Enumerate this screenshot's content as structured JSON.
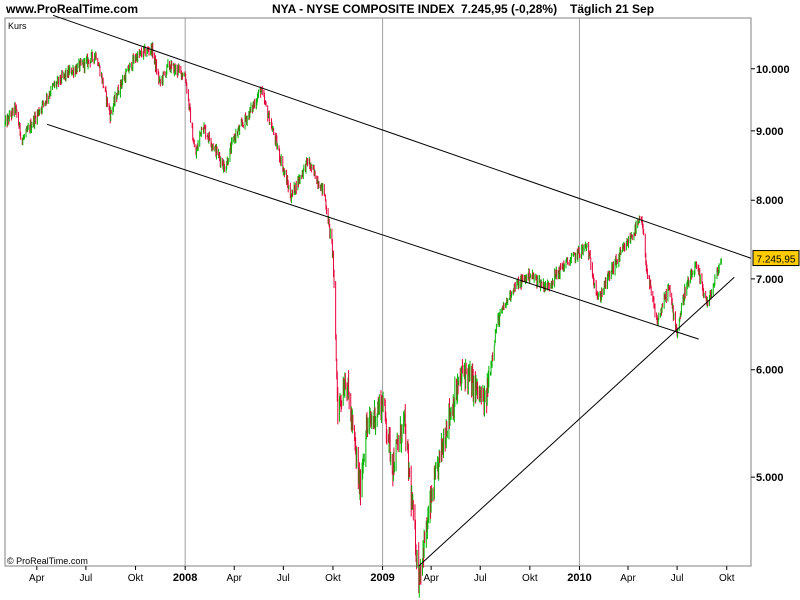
{
  "header": {
    "site": "www.ProRealTime.com",
    "title": "NYA - NYSE COMPOSITE INDEX",
    "last_value": "7.245,95 (-0,28%)",
    "period": "Täglich  21 Sep"
  },
  "panel_label": "Kurs",
  "copyright": "© ProRealTime.com",
  "price_tag": "7.245,95",
  "colors": {
    "up": "#00b400",
    "down": "#e8003a",
    "grid": "#a0a0a0",
    "tag_bg": "#ffcc00"
  },
  "chart_data": {
    "type": "candlestick",
    "y_scale": "log",
    "ylim": [
      4300,
      10900
    ],
    "y_ticks": [
      {
        "label": "10.000",
        "value": 10000
      },
      {
        "label": "9.000",
        "value": 9000
      },
      {
        "label": "8.000",
        "value": 8000
      },
      {
        "label": "7.000",
        "value": 7000
      },
      {
        "label": "6.000",
        "value": 6000
      },
      {
        "label": "5.000",
        "value": 5000
      }
    ],
    "x_ticks": [
      {
        "label": "Apr",
        "date": "2007-04-01",
        "year": false
      },
      {
        "label": "Jul",
        "date": "2007-07-01",
        "year": false
      },
      {
        "label": "Okt",
        "date": "2007-10-01",
        "year": false
      },
      {
        "label": "2008",
        "date": "2008-01-01",
        "year": true
      },
      {
        "label": "Apr",
        "date": "2008-04-01",
        "year": false
      },
      {
        "label": "Jul",
        "date": "2008-07-01",
        "year": false
      },
      {
        "label": "Okt",
        "date": "2008-10-01",
        "year": false
      },
      {
        "label": "2009",
        "date": "2009-01-01",
        "year": true
      },
      {
        "label": "Apr",
        "date": "2009-04-01",
        "year": false
      },
      {
        "label": "Jul",
        "date": "2009-07-01",
        "year": false
      },
      {
        "label": "Okt",
        "date": "2009-10-01",
        "year": false
      },
      {
        "label": "2010",
        "date": "2010-01-01",
        "year": true
      },
      {
        "label": "Apr",
        "date": "2010-04-01",
        "year": false
      },
      {
        "label": "Jul",
        "date": "2010-07-01",
        "year": false
      },
      {
        "label": "Okt",
        "date": "2010-10-01",
        "year": false
      }
    ],
    "xlim": [
      "2007-02-01",
      "2010-11-15"
    ],
    "last_close": 7245.95,
    "series": [
      {
        "values": [
          [
            "2007-02-01",
            9100
          ],
          [
            "2007-02-20",
            9350
          ],
          [
            "2007-03-05",
            8850
          ],
          [
            "2007-04-01",
            9250
          ],
          [
            "2007-05-01",
            9700
          ],
          [
            "2007-06-01",
            9950
          ],
          [
            "2007-07-01",
            10100
          ],
          [
            "2007-07-20",
            10250
          ],
          [
            "2007-08-15",
            9250
          ],
          [
            "2007-09-01",
            9700
          ],
          [
            "2007-10-01",
            10200
          ],
          [
            "2007-10-31",
            10350
          ],
          [
            "2007-11-15",
            9750
          ],
          [
            "2007-12-01",
            10050
          ],
          [
            "2008-01-01",
            9900
          ],
          [
            "2008-01-20",
            8600
          ],
          [
            "2008-02-01",
            9100
          ],
          [
            "2008-03-15",
            8450
          ],
          [
            "2008-04-01",
            8900
          ],
          [
            "2008-05-01",
            9300
          ],
          [
            "2008-05-20",
            9650
          ],
          [
            "2008-06-15",
            8900
          ],
          [
            "2008-07-15",
            8050
          ],
          [
            "2008-08-15",
            8550
          ],
          [
            "2008-09-15",
            8100
          ],
          [
            "2008-10-01",
            7300
          ],
          [
            "2008-10-10",
            5600
          ],
          [
            "2008-10-25",
            5950
          ],
          [
            "2008-11-20",
            4900
          ],
          [
            "2008-12-01",
            5400
          ],
          [
            "2009-01-01",
            5700
          ],
          [
            "2009-01-20",
            5100
          ],
          [
            "2009-02-10",
            5500
          ],
          [
            "2009-03-09",
            4220
          ],
          [
            "2009-04-01",
            4800
          ],
          [
            "2009-05-01",
            5500
          ],
          [
            "2009-06-01",
            6000
          ],
          [
            "2009-07-10",
            5650
          ],
          [
            "2009-08-01",
            6500
          ],
          [
            "2009-09-01",
            6900
          ],
          [
            "2009-10-01",
            7050
          ],
          [
            "2009-11-01",
            6900
          ],
          [
            "2009-12-01",
            7150
          ],
          [
            "2010-01-15",
            7400
          ],
          [
            "2010-02-05",
            6750
          ],
          [
            "2010-03-01",
            7100
          ],
          [
            "2010-04-26",
            7750
          ],
          [
            "2010-05-07",
            7050
          ],
          [
            "2010-05-25",
            6500
          ],
          [
            "2010-06-15",
            6900
          ],
          [
            "2010-07-01",
            6400
          ],
          [
            "2010-07-15",
            6850
          ],
          [
            "2010-08-05",
            7150
          ],
          [
            "2010-08-27",
            6700
          ],
          [
            "2010-09-21",
            7245.95
          ]
        ]
      }
    ],
    "trendlines": [
      {
        "from": [
          "2007-05-01",
          10950
        ],
        "to": [
          "2010-11-15",
          7250
        ]
      },
      {
        "from": [
          "2007-04-20",
          9100
        ],
        "to": [
          "2010-08-10",
          6320
        ]
      },
      {
        "from": [
          "2009-03-09",
          4300
        ],
        "to": [
          "2010-10-15",
          7020
        ]
      }
    ]
  }
}
